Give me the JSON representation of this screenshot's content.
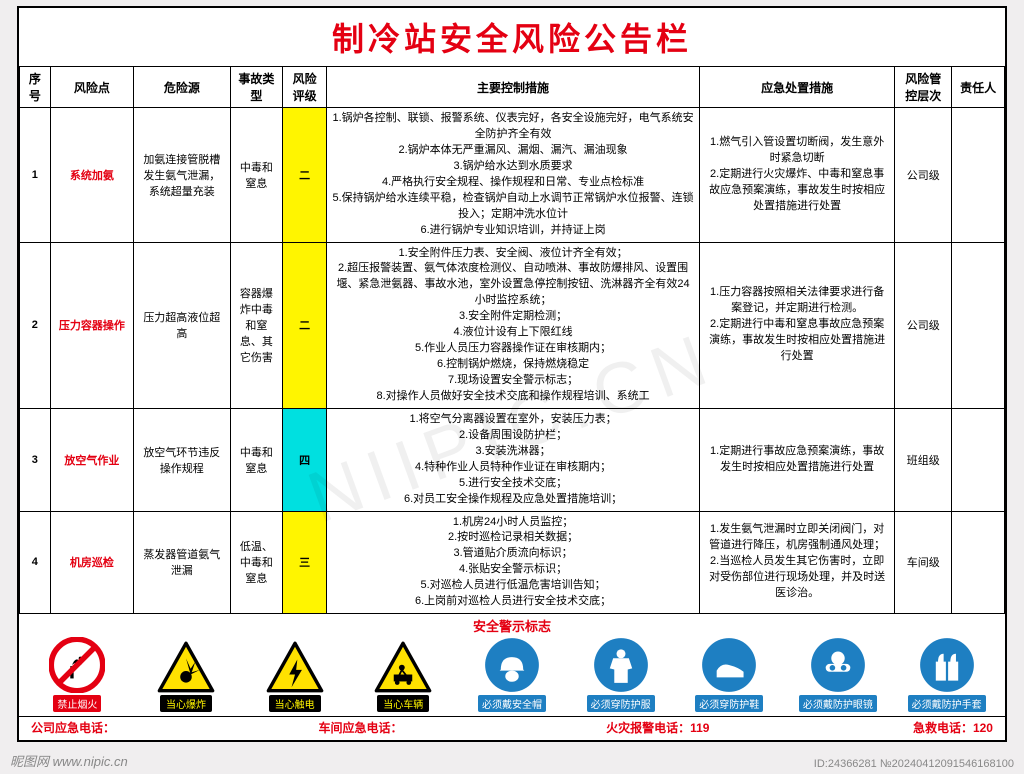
{
  "title": "制冷站安全风险公告栏",
  "columns": [
    "序号",
    "风险点",
    "危险源",
    "事故类型",
    "风险评级",
    "主要控制措施",
    "应急处置措施",
    "风险管控层次",
    "责任人"
  ],
  "rows": [
    {
      "seq": "1",
      "point": "系统加氨",
      "source": "加氨连接管脱槽发生氨气泄漏，系统超量充装",
      "type": "中毒和窒息",
      "level": "二",
      "levelClass": "lvl-2",
      "ctrl": "1.锅炉各控制、联锁、报警系统、仪表完好，各安全设施完好，电气系统安全防护齐全有效\n2.锅炉本体无严重漏风、漏烟、漏汽、漏油现象\n3.锅炉给水达到水质要求\n4.严格执行安全规程、操作规程和日常、专业点检标准\n5.保持锅炉给水连续平稳，检查锅炉自动上水调节正常锅炉水位报警、连锁投入；定期冲洗水位计\n6.进行锅炉专业知识培训，并持证上岗",
      "emerg": "1.燃气引入管设置切断阀，发生意外时紧急切断\n2.定期进行火灾爆炸、中毒和窒息事故应急预案演练，事故发生时按相应处置措施进行处置",
      "layer": "公司级",
      "resp": ""
    },
    {
      "seq": "2",
      "point": "压力容器操作",
      "source": "压力超高液位超高",
      "type": "容器爆炸中毒和窒息、其它伤害",
      "level": "二",
      "levelClass": "lvl-2",
      "ctrl": "1.安全附件压力表、安全阀、液位计齐全有效；\n2.超压报警装置、氨气体浓度检测仪、自动喷淋、事故防爆排风、设置围堰、紧急泄氨器、事故水池，室外设置急停控制按钮、洗淋器齐全有效24小时监控系统；\n3.安全附件定期检测；\n4.液位计设有上下限红线\n5.作业人员压力容器操作证在审核期内；\n6.控制锅炉燃烧，保持燃烧稳定\n7.现场设置安全警示标志；\n8.对操作人员做好安全技术交底和操作规程培训、系统工",
      "emerg": "1.压力容器按照相关法律要求进行备案登记，并定期进行检测。\n2.定期进行中毒和窒息事故应急预案演练，事故发生时按相应处置措施进行处置",
      "layer": "公司级",
      "resp": ""
    },
    {
      "seq": "3",
      "point": "放空气作业",
      "source": "放空气环节违反操作规程",
      "type": "中毒和窒息",
      "level": "四",
      "levelClass": "lvl-4",
      "ctrl": "1.将空气分离器设置在室外，安装压力表；\n2.设备周围设防护栏；\n3.安装洗淋器；\n4.特种作业人员特种作业证在审核期内；\n5.进行安全技术交底；\n6.对员工安全操作规程及应急处置措施培训；",
      "emerg": "1.定期进行事故应急预案演练，事故发生时按相应处置措施进行处置",
      "layer": "班组级",
      "resp": ""
    },
    {
      "seq": "4",
      "point": "机房巡检",
      "source": "蒸发器管道氨气泄漏",
      "type": "低温、中毒和窒息",
      "level": "三",
      "levelClass": "lvl-3",
      "ctrl": "1.机房24小时人员监控；\n2.按时巡检记录相关数据；\n3.管道贴介质流向标识；\n4.张贴安全警示标识；\n5.对巡检人员进行低温危害培训告知；\n6.上岗前对巡检人员进行安全技术交底；",
      "emerg": "1.发生氨气泄漏时立即关闭阀门，对管道进行降压，机房强制通风处理；\n2.当巡检人员发生其它伤害时，立即对受伤部位进行现场处理，并及时送医诊治。",
      "layer": "车间级",
      "resp": ""
    }
  ],
  "signs_title": "安全警示标志",
  "signs": [
    {
      "name": "no-fire-icon",
      "label": "禁止烟火",
      "labelClass": "lbl-red",
      "kind": "prohibit"
    },
    {
      "name": "explosion-icon",
      "label": "当心爆炸",
      "labelClass": "lbl-yellow",
      "kind": "warn"
    },
    {
      "name": "electric-icon",
      "label": "当心触电",
      "labelClass": "lbl-yellow",
      "kind": "warn"
    },
    {
      "name": "vehicle-icon",
      "label": "当心车辆",
      "labelClass": "lbl-yellow",
      "kind": "warn"
    },
    {
      "name": "helmet-icon",
      "label": "必须戴安全帽",
      "labelClass": "lbl-blue",
      "kind": "mand"
    },
    {
      "name": "suit-icon",
      "label": "必须穿防护服",
      "labelClass": "lbl-blue",
      "kind": "mand"
    },
    {
      "name": "shoes-icon",
      "label": "必须穿防护鞋",
      "labelClass": "lbl-blue",
      "kind": "mand"
    },
    {
      "name": "goggles-icon",
      "label": "必须戴防护眼镜",
      "labelClass": "lbl-blue",
      "kind": "mand"
    },
    {
      "name": "gloves-icon",
      "label": "必须戴防护手套",
      "labelClass": "lbl-blue",
      "kind": "mand"
    }
  ],
  "phones": {
    "company": "公司应急电话：",
    "workshop": "车间应急电话：",
    "fire": "火灾报警电话：119",
    "aid": "急救电话：120"
  },
  "watermark": {
    "bl": "昵图网  www.nipic.cn",
    "br": "ID:24366281  №20240412091546168100",
    "diag": "NIIPIC.CN"
  },
  "colors": {
    "title": "#e40012",
    "level_yellow": "#fff500",
    "level_cyan": "#00e0e0",
    "blue": "#1e7fc2",
    "warn_fill": "#ffe100"
  }
}
